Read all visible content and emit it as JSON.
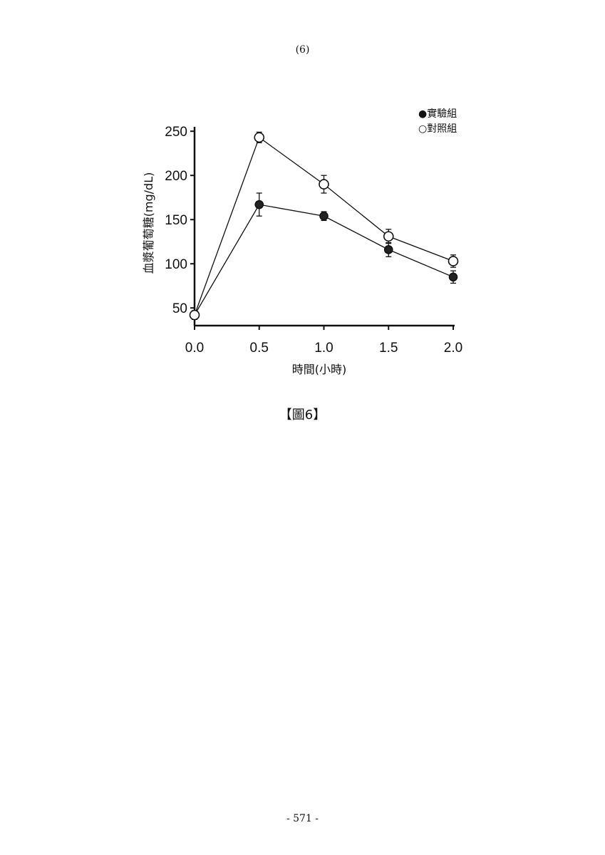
{
  "page": {
    "header": "(6)",
    "caption": "【圖6】",
    "footer": "- 571 -"
  },
  "chart_data": {
    "type": "line",
    "title": "",
    "xlabel": "時間(小時)",
    "ylabel": "血漿葡萄糖(mg/dL)",
    "x": [
      0.0,
      0.5,
      1.0,
      1.5,
      2.0
    ],
    "x_tick_labels": [
      "0.0",
      "0.5",
      "1.0",
      "1.5",
      "2.0"
    ],
    "y_ticks": [
      50,
      100,
      150,
      200,
      250
    ],
    "xlim": [
      0.0,
      2.0
    ],
    "ylim": [
      30,
      255
    ],
    "grid": false,
    "legend_position": "top-right",
    "series": [
      {
        "name": "實驗組",
        "legend_label": "●實驗組",
        "marker": "filled-circle",
        "color": "#111111",
        "values": [
          42,
          167,
          154,
          116,
          85
        ],
        "errors": [
          5,
          13,
          5,
          8,
          7
        ]
      },
      {
        "name": "對照組",
        "legend_label": "○對照組",
        "marker": "open-circle",
        "color": "#111111",
        "values": [
          42,
          243,
          190,
          131,
          103
        ],
        "errors": [
          4,
          6,
          10,
          8,
          7
        ]
      }
    ]
  }
}
